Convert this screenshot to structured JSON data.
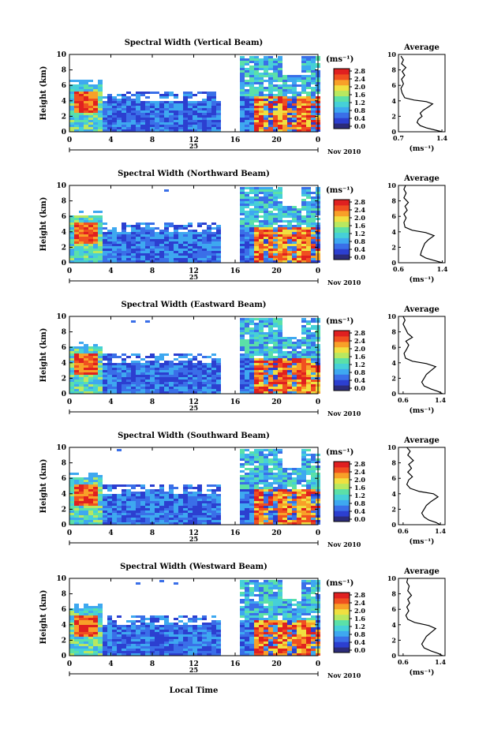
{
  "chart_data": {
    "type": "heatmap",
    "x_axis_label": "Local Time",
    "date_label": "25",
    "month_label": "Nov 2010",
    "y_axis_label": "Height (km)",
    "x_ticks": [
      "0",
      "4",
      "8",
      "12",
      "16",
      "20",
      "0"
    ],
    "y_ticks": [
      "0",
      "2",
      "4",
      "6",
      "8",
      "10"
    ],
    "xlim": [
      0,
      24
    ],
    "ylim": [
      0,
      10
    ],
    "colorbar": {
      "unit": "(ms⁻¹)",
      "ticks": [
        "0.0",
        "0.4",
        "0.8",
        "1.2",
        "1.6",
        "2.0",
        "2.4",
        "2.8"
      ],
      "range": [
        0.0,
        2.8
      ],
      "colors": [
        "#2b2b7a",
        "#2c3fd0",
        "#3a6fe8",
        "#3ea8f0",
        "#46d0d8",
        "#5be0a8",
        "#b8e860",
        "#f0e040",
        "#f8a028",
        "#f05020",
        "#e02020"
      ]
    },
    "average_title": "Average",
    "average_xlabel": "(ms⁻¹)",
    "panels": [
      {
        "title": "Spectral Width (Vertical Beam)",
        "avg_xticks": [
          "0.7",
          "1.4"
        ],
        "avg_xlim": [
          0.7,
          1.45
        ],
        "avg_profile": [
          [
            1.4,
            0
          ],
          [
            1.3,
            0.2
          ],
          [
            1.15,
            0.5
          ],
          [
            1.05,
            0.8
          ],
          [
            1.0,
            1.2
          ],
          [
            1.02,
            1.6
          ],
          [
            1.08,
            2.0
          ],
          [
            1.05,
            2.4
          ],
          [
            1.1,
            2.8
          ],
          [
            1.18,
            3.2
          ],
          [
            1.25,
            3.6
          ],
          [
            1.15,
            3.9
          ],
          [
            0.95,
            4.1
          ],
          [
            0.8,
            4.4
          ],
          [
            0.76,
            5.0
          ],
          [
            0.74,
            5.6
          ],
          [
            0.78,
            6.2
          ],
          [
            0.75,
            6.8
          ],
          [
            0.8,
            7.3
          ],
          [
            0.76,
            7.8
          ],
          [
            0.82,
            8.3
          ],
          [
            0.75,
            8.8
          ],
          [
            0.78,
            9.3
          ],
          [
            0.74,
            9.8
          ]
        ]
      },
      {
        "title": "Spectral Width (Northward Beam)",
        "avg_xticks": [
          "0.6",
          "1.4"
        ],
        "avg_xlim": [
          0.6,
          1.45
        ],
        "avg_profile": [
          [
            1.4,
            0
          ],
          [
            1.25,
            0.3
          ],
          [
            1.1,
            0.6
          ],
          [
            1.0,
            1.0
          ],
          [
            1.02,
            1.5
          ],
          [
            1.05,
            2.0
          ],
          [
            1.08,
            2.5
          ],
          [
            1.15,
            3.0
          ],
          [
            1.25,
            3.5
          ],
          [
            1.1,
            3.9
          ],
          [
            0.85,
            4.2
          ],
          [
            0.72,
            4.6
          ],
          [
            0.7,
            5.2
          ],
          [
            0.74,
            5.8
          ],
          [
            0.7,
            6.3
          ],
          [
            0.76,
            6.8
          ],
          [
            0.72,
            7.3
          ],
          [
            0.78,
            7.8
          ],
          [
            0.7,
            8.4
          ],
          [
            0.74,
            9.0
          ],
          [
            0.7,
            9.5
          ],
          [
            0.73,
            10
          ]
        ]
      },
      {
        "title": "Spectral Width (Eastward Beam)",
        "avg_xticks": [
          "0.6",
          "1.4"
        ],
        "avg_xlim": [
          0.5,
          1.5
        ],
        "avg_profile": [
          [
            1.45,
            0
          ],
          [
            1.35,
            0.3
          ],
          [
            1.2,
            0.6
          ],
          [
            1.05,
            1.0
          ],
          [
            1.0,
            1.5
          ],
          [
            1.05,
            2.0
          ],
          [
            1.1,
            2.5
          ],
          [
            1.2,
            3.0
          ],
          [
            1.3,
            3.5
          ],
          [
            1.1,
            3.9
          ],
          [
            0.8,
            4.2
          ],
          [
            0.65,
            4.6
          ],
          [
            0.62,
            5.2
          ],
          [
            0.68,
            5.8
          ],
          [
            0.72,
            6.3
          ],
          [
            0.66,
            6.8
          ],
          [
            0.8,
            7.3
          ],
          [
            0.7,
            7.8
          ],
          [
            0.66,
            8.3
          ],
          [
            0.6,
            9.0
          ],
          [
            0.64,
            9.5
          ],
          [
            0.6,
            10
          ]
        ]
      },
      {
        "title": "Spectral Width (Southward Beam)",
        "avg_xticks": [
          "0.6",
          "1.4"
        ],
        "avg_xlim": [
          0.5,
          1.5
        ],
        "avg_profile": [
          [
            1.4,
            0
          ],
          [
            1.3,
            0.3
          ],
          [
            1.15,
            0.6
          ],
          [
            1.05,
            1.0
          ],
          [
            1.0,
            1.5
          ],
          [
            1.05,
            2.0
          ],
          [
            1.1,
            2.5
          ],
          [
            1.2,
            3.0
          ],
          [
            1.35,
            3.6
          ],
          [
            1.25,
            4.0
          ],
          [
            0.95,
            4.3
          ],
          [
            0.75,
            4.7
          ],
          [
            0.68,
            5.2
          ],
          [
            0.72,
            5.8
          ],
          [
            0.8,
            6.2
          ],
          [
            0.7,
            6.8
          ],
          [
            0.78,
            7.3
          ],
          [
            0.72,
            7.8
          ],
          [
            0.82,
            8.3
          ],
          [
            0.7,
            9.0
          ],
          [
            0.75,
            9.5
          ],
          [
            0.68,
            10
          ]
        ]
      },
      {
        "title": "Spectral Width (Westward Beam)",
        "avg_xticks": [
          "0.6",
          "1.4"
        ],
        "avg_xlim": [
          0.5,
          1.5
        ],
        "avg_profile": [
          [
            1.45,
            0
          ],
          [
            1.35,
            0.3
          ],
          [
            1.2,
            0.6
          ],
          [
            1.05,
            1.0
          ],
          [
            1.0,
            1.5
          ],
          [
            1.05,
            2.0
          ],
          [
            1.1,
            2.5
          ],
          [
            1.2,
            3.0
          ],
          [
            1.3,
            3.5
          ],
          [
            1.15,
            3.9
          ],
          [
            0.85,
            4.3
          ],
          [
            0.7,
            4.7
          ],
          [
            0.66,
            5.2
          ],
          [
            0.72,
            5.8
          ],
          [
            0.68,
            6.3
          ],
          [
            0.74,
            6.8
          ],
          [
            0.7,
            7.3
          ],
          [
            0.78,
            7.8
          ],
          [
            0.7,
            8.4
          ],
          [
            0.73,
            9.0
          ],
          [
            0.68,
            9.5
          ],
          [
            0.7,
            10
          ]
        ]
      }
    ]
  }
}
